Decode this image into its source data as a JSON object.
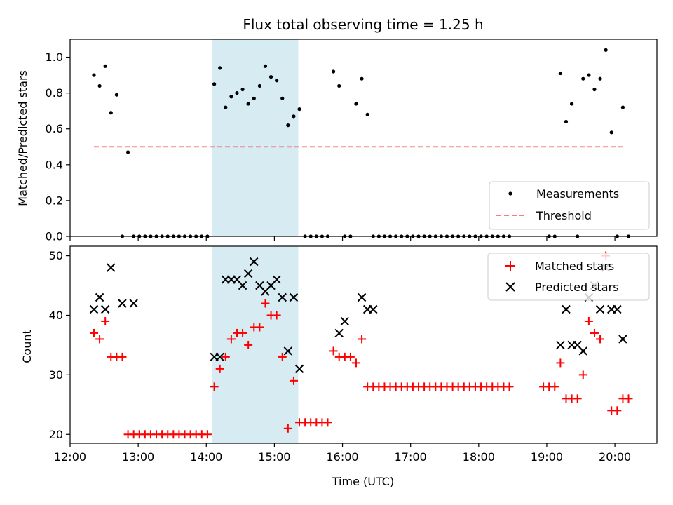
{
  "chart_data": [
    {
      "type": "scatter",
      "title": "Flux total observing time = 1.25 h",
      "xlabel": "",
      "ylabel": "Matched/Predicted stars",
      "xlim": [
        "12:00",
        "20:37"
      ],
      "ylim": [
        0,
        1.1
      ],
      "yticks": [
        "0.0",
        "0.2",
        "0.4",
        "0.6",
        "0.8",
        "1.0"
      ],
      "highlight": {
        "x_start": "14:05",
        "x_end": "15:21",
        "color": "#add8e6"
      },
      "legend_position": "lower-right",
      "legend": {
        "measurements": "Measurements",
        "threshold": "Threshold"
      },
      "threshold": {
        "value": 0.5,
        "x_start": "12:21",
        "x_end": "20:09",
        "color": "#f08080"
      },
      "series": [
        {
          "color": "#000000",
          "x": [
            "12:21",
            "12:26",
            "12:31",
            "12:36",
            "12:41",
            "12:51",
            "12:46",
            "12:56",
            "13:01",
            "13:06",
            "13:11",
            "13:16",
            "13:21",
            "13:26",
            "13:31",
            "13:36",
            "13:41",
            "13:46",
            "13:51",
            "13:56",
            "14:01",
            "14:07",
            "14:12",
            "14:17",
            "14:22",
            "14:27",
            "14:32",
            "14:37",
            "14:42",
            "14:47",
            "14:52",
            "14:57",
            "15:02",
            "15:07",
            "15:12",
            "15:17",
            "15:22",
            "15:27",
            "15:32",
            "15:37",
            "15:42",
            "15:47",
            "15:52",
            "15:57",
            "16:02",
            "16:07",
            "16:12",
            "16:17",
            "16:22",
            "16:27",
            "16:32",
            "16:37",
            "16:42",
            "16:47",
            "16:52",
            "16:57",
            "17:02",
            "17:07",
            "17:12",
            "17:17",
            "17:22",
            "17:27",
            "17:32",
            "17:37",
            "17:42",
            "17:47",
            "17:52",
            "17:57",
            "18:02",
            "18:07",
            "18:12",
            "18:17",
            "18:22",
            "18:27",
            "19:02",
            "19:07",
            "19:12",
            "19:17",
            "19:22",
            "19:27",
            "19:32",
            "19:37",
            "19:42",
            "19:47",
            "19:52",
            "19:57",
            "20:02",
            "20:07",
            "20:12"
          ],
          "y": [
            0.9,
            0.84,
            0.95,
            0.69,
            0.79,
            0.47,
            0,
            0,
            0,
            0,
            0,
            0,
            0,
            0,
            0,
            0,
            0,
            0,
            0,
            0,
            0,
            0.85,
            0.94,
            0.72,
            0.78,
            0.8,
            0.82,
            0.74,
            0.77,
            0.84,
            0.95,
            0.89,
            0.87,
            0.77,
            0.62,
            0.67,
            0.71,
            0,
            0,
            0,
            0,
            0,
            0.92,
            0.84,
            0,
            0,
            0.74,
            0.88,
            0.68,
            0,
            0,
            0,
            0,
            0,
            0,
            0,
            0,
            0,
            0,
            0,
            0,
            0,
            0,
            0,
            0,
            0,
            0,
            0,
            0,
            0,
            0,
            0,
            0,
            0,
            0,
            0,
            0.91,
            0.64,
            0.74,
            0,
            0.88,
            0.9,
            0.82,
            0.88,
            1.04,
            0.58,
            0,
            0.72,
            0
          ]
        }
      ]
    },
    {
      "type": "scatter",
      "title": "",
      "xlabel": "Time (UTC)",
      "ylabel": "Count",
      "xlim": [
        "12:00",
        "20:37"
      ],
      "ylim": [
        18.5,
        51.6
      ],
      "yticks": [
        "20",
        "30",
        "40",
        "50"
      ],
      "xticks": [
        "12:00",
        "13:00",
        "14:00",
        "15:00",
        "16:00",
        "17:00",
        "18:00",
        "19:00",
        "20:00"
      ],
      "highlight": {
        "x_start": "14:05",
        "x_end": "15:21",
        "color": "#add8e6"
      },
      "legend_position": "top-right",
      "series": [
        {
          "name": "Matched stars",
          "marker": "plus",
          "color": "#ff0000",
          "x": [
            "12:21",
            "12:26",
            "12:31",
            "12:36",
            "12:41",
            "12:46",
            "12:51",
            "12:56",
            "13:01",
            "13:06",
            "13:11",
            "13:16",
            "13:21",
            "13:26",
            "13:31",
            "13:36",
            "13:41",
            "13:46",
            "13:51",
            "13:56",
            "14:01",
            "14:07",
            "14:12",
            "14:17",
            "14:22",
            "14:27",
            "14:32",
            "14:37",
            "14:42",
            "14:47",
            "14:52",
            "14:57",
            "15:02",
            "15:07",
            "15:12",
            "15:17",
            "15:22",
            "15:27",
            "15:32",
            "15:37",
            "15:42",
            "15:47",
            "15:52",
            "15:57",
            "16:02",
            "16:07",
            "16:12",
            "16:17",
            "16:22",
            "16:27",
            "16:32",
            "16:37",
            "16:42",
            "16:47",
            "16:52",
            "16:57",
            "17:02",
            "17:07",
            "17:12",
            "17:17",
            "17:22",
            "17:27",
            "17:32",
            "17:37",
            "17:42",
            "17:47",
            "17:52",
            "17:57",
            "18:02",
            "18:07",
            "18:12",
            "18:17",
            "18:22",
            "18:27",
            "18:57",
            "19:02",
            "19:07",
            "19:12",
            "19:17",
            "19:22",
            "19:27",
            "19:32",
            "19:37",
            "19:42",
            "19:47",
            "19:52",
            "19:57",
            "20:02",
            "20:07",
            "20:12"
          ],
          "y": [
            37,
            36,
            39,
            33,
            33,
            33,
            20,
            20,
            20,
            20,
            20,
            20,
            20,
            20,
            20,
            20,
            20,
            20,
            20,
            20,
            20,
            28,
            31,
            33,
            36,
            37,
            37,
            35,
            38,
            38,
            42,
            40,
            40,
            33,
            21,
            29,
            22,
            22,
            22,
            22,
            22,
            22,
            34,
            33,
            33,
            33,
            32,
            36,
            28,
            28,
            28,
            28,
            28,
            28,
            28,
            28,
            28,
            28,
            28,
            28,
            28,
            28,
            28,
            28,
            28,
            28,
            28,
            28,
            28,
            28,
            28,
            28,
            28,
            28,
            28,
            28,
            28,
            32,
            26,
            26,
            26,
            30,
            39,
            37,
            36,
            50,
            24,
            24,
            26,
            26
          ]
        },
        {
          "name": "Predicted stars",
          "marker": "x",
          "color": "#000000",
          "x": [
            "12:21",
            "12:26",
            "12:31",
            "12:36",
            "12:46",
            "12:56",
            "14:07",
            "14:12",
            "14:17",
            "14:22",
            "14:27",
            "14:32",
            "14:37",
            "14:42",
            "14:47",
            "14:52",
            "14:57",
            "15:02",
            "15:07",
            "15:12",
            "15:17",
            "15:22",
            "15:57",
            "16:02",
            "16:17",
            "16:22",
            "16:27",
            "19:12",
            "19:17",
            "19:22",
            "19:27",
            "19:32",
            "19:37",
            "19:42",
            "19:47",
            "19:52",
            "19:57",
            "20:02",
            "20:07"
          ],
          "y": [
            41,
            43,
            41,
            48,
            42,
            42,
            33,
            33,
            46,
            46,
            46,
            45,
            47,
            49,
            45,
            44,
            45,
            46,
            43,
            34,
            43,
            31,
            37,
            39,
            43,
            41,
            41,
            35,
            41,
            35,
            35,
            34,
            43,
            45,
            41,
            48,
            41,
            41,
            36
          ]
        }
      ]
    }
  ]
}
